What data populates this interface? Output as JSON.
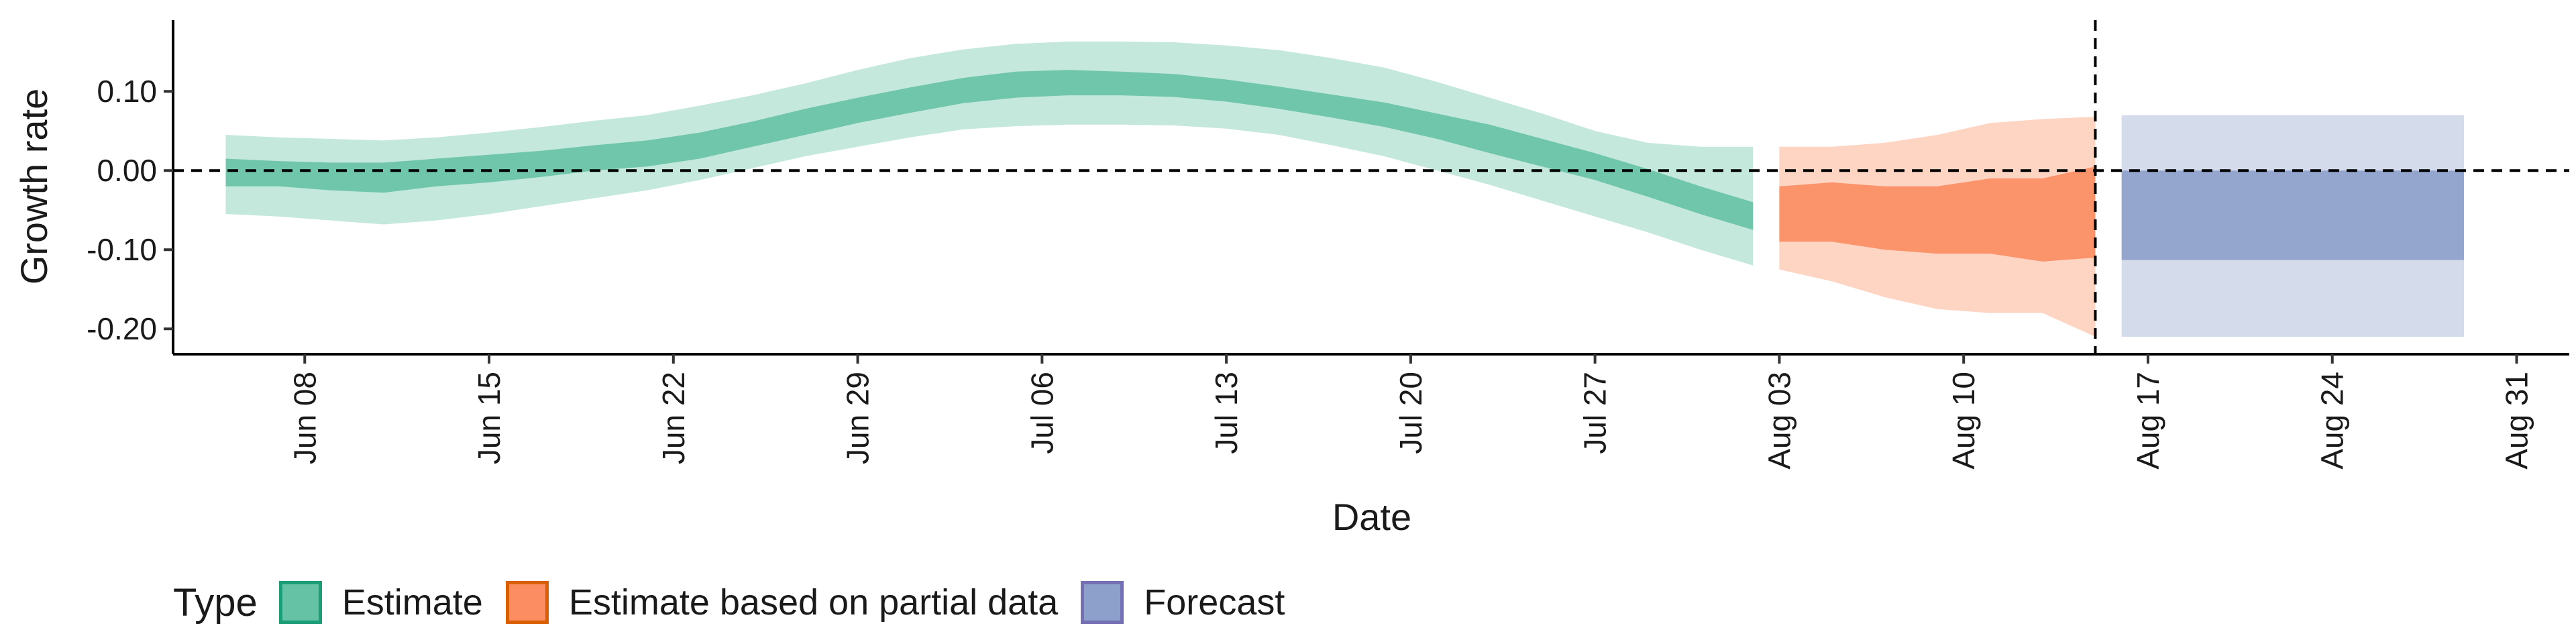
{
  "chart_data": {
    "type": "area",
    "xlabel": "Date",
    "ylabel": "Growth rate",
    "x_domain": [
      "2020-06-03",
      "2020-09-02"
    ],
    "ylim": [
      -0.232,
      0.19
    ],
    "y_ticks": [
      0.1,
      0.0,
      -0.1,
      -0.2
    ],
    "y_tick_labels": [
      "0.10",
      "0.00",
      "-0.10",
      "-0.20"
    ],
    "x_ticks": [
      "2020-06-08",
      "2020-06-15",
      "2020-06-22",
      "2020-06-29",
      "2020-07-06",
      "2020-07-13",
      "2020-07-20",
      "2020-07-27",
      "2020-08-03",
      "2020-08-10",
      "2020-08-17",
      "2020-08-24",
      "2020-08-31"
    ],
    "x_tick_labels": [
      "Jun 08",
      "Jun 15",
      "Jun 22",
      "Jun 29",
      "Jul 06",
      "Jul 13",
      "Jul 20",
      "Jul 27",
      "Aug 03",
      "Aug 10",
      "Aug 17",
      "Aug 24",
      "Aug 31"
    ],
    "reference_lines": {
      "horizontal_y": 0.0,
      "vertical_x": "2020-08-15"
    },
    "grid": false,
    "legend": {
      "title": "Type",
      "placement": "bottom-left"
    },
    "series": [
      {
        "name": "Estimate",
        "fill_color": "#66c2a5",
        "outline_color": "#1b9e77",
        "dates": [
          "2020-06-05",
          "2020-06-07",
          "2020-06-09",
          "2020-06-11",
          "2020-06-13",
          "2020-06-15",
          "2020-06-17",
          "2020-06-19",
          "2020-06-21",
          "2020-06-23",
          "2020-06-25",
          "2020-06-27",
          "2020-06-29",
          "2020-07-01",
          "2020-07-03",
          "2020-07-05",
          "2020-07-07",
          "2020-07-09",
          "2020-07-11",
          "2020-07-13",
          "2020-07-15",
          "2020-07-17",
          "2020-07-19",
          "2020-07-21",
          "2020-07-23",
          "2020-07-25",
          "2020-07-27",
          "2020-07-29",
          "2020-07-31",
          "2020-08-02"
        ],
        "median": [
          -0.005,
          -0.005,
          -0.01,
          -0.01,
          -0.005,
          0.0,
          0.007,
          0.015,
          0.02,
          0.03,
          0.045,
          0.06,
          0.075,
          0.088,
          0.1,
          0.108,
          0.11,
          0.108,
          0.105,
          0.098,
          0.09,
          0.08,
          0.07,
          0.055,
          0.04,
          0.022,
          0.005,
          -0.015,
          -0.04,
          -0.058
        ],
        "lower_50": [
          -0.02,
          -0.02,
          -0.025,
          -0.028,
          -0.02,
          -0.015,
          -0.008,
          0.0,
          0.005,
          0.015,
          0.03,
          0.045,
          0.06,
          0.073,
          0.085,
          0.092,
          0.095,
          0.095,
          0.093,
          0.087,
          0.078,
          0.067,
          0.055,
          0.04,
          0.022,
          0.005,
          -0.012,
          -0.033,
          -0.055,
          -0.075
        ],
        "upper_50": [
          0.015,
          0.012,
          0.01,
          0.01,
          0.015,
          0.02,
          0.025,
          0.032,
          0.038,
          0.048,
          0.062,
          0.078,
          0.092,
          0.105,
          0.117,
          0.125,
          0.127,
          0.125,
          0.122,
          0.115,
          0.106,
          0.096,
          0.086,
          0.072,
          0.058,
          0.04,
          0.022,
          0.002,
          -0.02,
          -0.04
        ],
        "lower_90": [
          -0.055,
          -0.058,
          -0.063,
          -0.068,
          -0.063,
          -0.055,
          -0.045,
          -0.035,
          -0.025,
          -0.012,
          0.003,
          0.018,
          0.03,
          0.042,
          0.052,
          0.056,
          0.058,
          0.058,
          0.057,
          0.053,
          0.045,
          0.032,
          0.018,
          0.0,
          -0.018,
          -0.038,
          -0.058,
          -0.078,
          -0.1,
          -0.12
        ],
        "upper_90": [
          0.045,
          0.042,
          0.04,
          0.038,
          0.042,
          0.048,
          0.055,
          0.063,
          0.07,
          0.082,
          0.095,
          0.11,
          0.127,
          0.142,
          0.153,
          0.16,
          0.163,
          0.163,
          0.162,
          0.158,
          0.152,
          0.142,
          0.13,
          0.112,
          0.092,
          0.072,
          0.05,
          0.035,
          0.03,
          0.03
        ]
      },
      {
        "name": "Estimate based on partial data",
        "fill_color": "#fc8d62",
        "outline_color": "#d95f02",
        "dates": [
          "2020-08-03",
          "2020-08-05",
          "2020-08-07",
          "2020-08-09",
          "2020-08-11",
          "2020-08-13",
          "2020-08-15"
        ],
        "median": [
          -0.055,
          -0.055,
          -0.06,
          -0.06,
          -0.055,
          -0.055,
          -0.045
        ],
        "lower_50": [
          -0.09,
          -0.09,
          -0.1,
          -0.105,
          -0.105,
          -0.115,
          -0.11
        ],
        "upper_50": [
          -0.02,
          -0.015,
          -0.02,
          -0.02,
          -0.01,
          -0.01,
          0.005
        ],
        "lower_90": [
          -0.125,
          -0.14,
          -0.16,
          -0.175,
          -0.18,
          -0.18,
          -0.21
        ],
        "upper_90": [
          0.03,
          0.03,
          0.035,
          0.045,
          0.06,
          0.065,
          0.068
        ]
      },
      {
        "name": "Forecast",
        "fill_color": "#8da0cb",
        "outline_color": "#7570b3",
        "dates": [
          "2020-08-16",
          "2020-08-29"
        ],
        "median": [
          -0.05,
          -0.05
        ],
        "lower_50": [
          -0.113,
          -0.113
        ],
        "upper_50": [
          0.0,
          0.0
        ],
        "lower_90": [
          -0.21,
          -0.21
        ],
        "upper_90": [
          0.07,
          0.07
        ]
      }
    ]
  }
}
